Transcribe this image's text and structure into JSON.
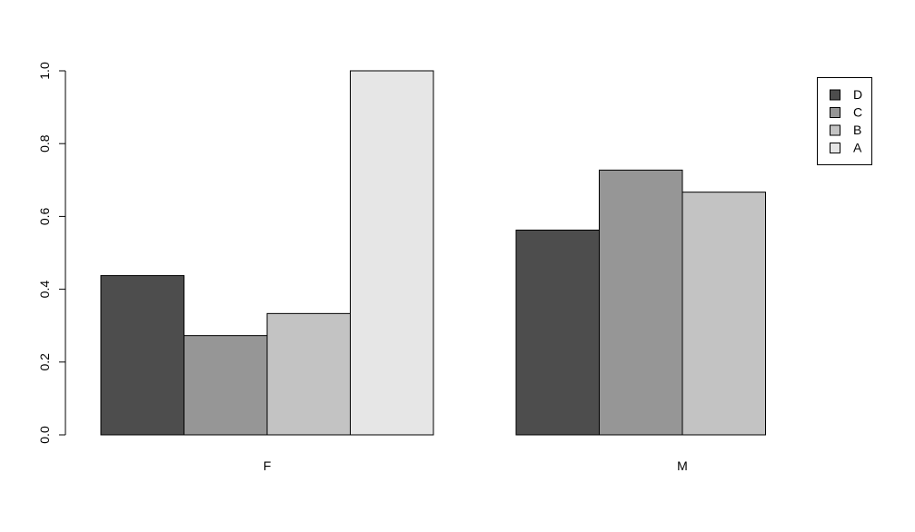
{
  "chart_data": {
    "type": "bar",
    "categories": [
      "F",
      "M"
    ],
    "series": [
      {
        "name": "D",
        "values": [
          0.4375,
          0.5625
        ],
        "color": "#4d4d4d"
      },
      {
        "name": "C",
        "values": [
          0.2727,
          0.7273
        ],
        "color": "#969696"
      },
      {
        "name": "B",
        "values": [
          0.3333,
          0.6667
        ],
        "color": "#c3c3c3"
      },
      {
        "name": "A",
        "values": [
          1.0,
          0.0
        ],
        "color": "#e6e6e6"
      }
    ],
    "ylim": [
      0,
      1
    ],
    "yticks": [
      "0.0",
      "0.2",
      "0.4",
      "0.6",
      "0.8",
      "1.0"
    ],
    "grid": false,
    "legend_position": "top-right"
  }
}
